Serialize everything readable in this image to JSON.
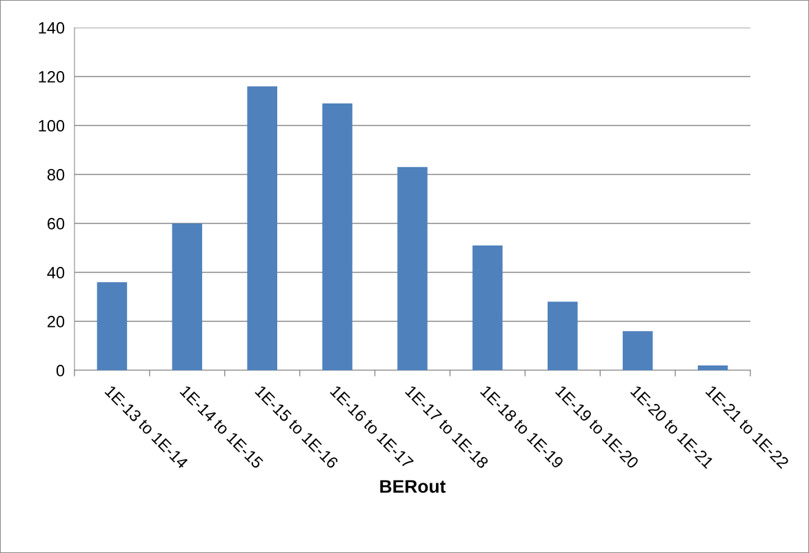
{
  "chart_data": {
    "type": "bar",
    "xlabel": "BERout",
    "categories": [
      "1E-13 to 1E-14",
      "1E-14 to 1E-15",
      "1E-15 to 1E-16",
      "1E-16 to 1E-17",
      "1E-17 to 1E-18",
      "1E-18 to 1E-19",
      "1E-19 to 1E-20",
      "1E-20 to 1E-21",
      "1E-21 to 1E-22"
    ],
    "values": [
      36,
      60,
      116,
      109,
      83,
      51,
      28,
      16,
      2
    ],
    "color": "#4f81bd",
    "ylim": [
      0,
      140
    ],
    "yticks": [
      0,
      20,
      40,
      60,
      80,
      100,
      120,
      140
    ],
    "grid": "y",
    "legend": false
  }
}
